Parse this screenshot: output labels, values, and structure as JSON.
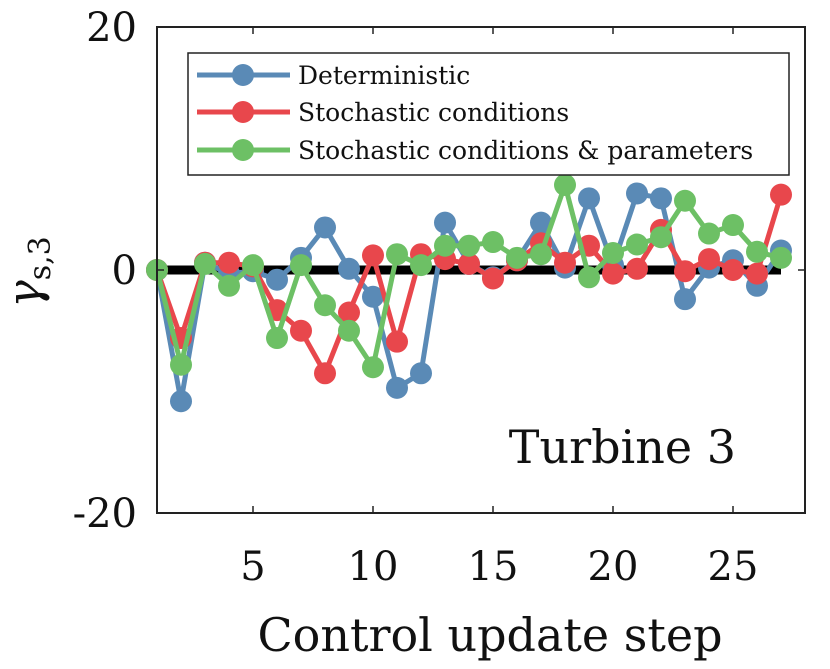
{
  "chart_data": {
    "type": "line",
    "title": "",
    "xlabel": "Control update step",
    "ylabel": "γ",
    "ylabel_sub": "s,3",
    "xlim": [
      1,
      28
    ],
    "ylim": [
      -20,
      20
    ],
    "xticks": [
      5,
      10,
      15,
      20,
      25
    ],
    "yticks": [
      -20,
      0,
      20
    ],
    "ytick_labels": [
      "-20",
      "0",
      "20"
    ],
    "annotation": "Turbine 3",
    "zero_line": true,
    "x": [
      1,
      2,
      3,
      4,
      5,
      6,
      7,
      8,
      9,
      10,
      11,
      12,
      13,
      14,
      15,
      16,
      17,
      18,
      19,
      20,
      21,
      22,
      23,
      24,
      25,
      26,
      27
    ],
    "series": [
      {
        "name": "Deterministic",
        "color": "#5a8ab6",
        "values": [
          0,
          -10.8,
          0.6,
          -0.3,
          -0.1,
          -0.8,
          1.0,
          3.5,
          0.1,
          -2.2,
          -9.7,
          -8.5,
          3.9,
          0.5,
          -0.6,
          0.8,
          3.9,
          0.2,
          5.9,
          0.4,
          6.3,
          5.9,
          -2.4,
          0.2,
          0.8,
          -1.3,
          1.6
        ]
      },
      {
        "name": "Stochastic conditions",
        "color": "#e8474c",
        "values": [
          0,
          -5.6,
          0.6,
          0.6,
          0.3,
          -3.3,
          -5.0,
          -8.5,
          -3.5,
          1.2,
          -5.9,
          1.3,
          0.9,
          0.5,
          -0.7,
          0.8,
          2.2,
          0.6,
          2.0,
          -0.3,
          0.1,
          3.3,
          -0.1,
          0.9,
          0.0,
          -0.3,
          6.2
        ]
      },
      {
        "name": "Stochastic conditions & parameters",
        "color": "#6dc065",
        "values": [
          0,
          -7.8,
          0.5,
          -1.3,
          0.4,
          -5.6,
          0.4,
          -2.9,
          -5.0,
          -8.0,
          1.3,
          0.4,
          2.0,
          2.0,
          2.3,
          1.0,
          1.3,
          7.0,
          -0.6,
          1.4,
          2.1,
          2.7,
          5.7,
          3.0,
          3.7,
          1.5,
          1.0
        ]
      }
    ],
    "legend_position": "top-right"
  }
}
